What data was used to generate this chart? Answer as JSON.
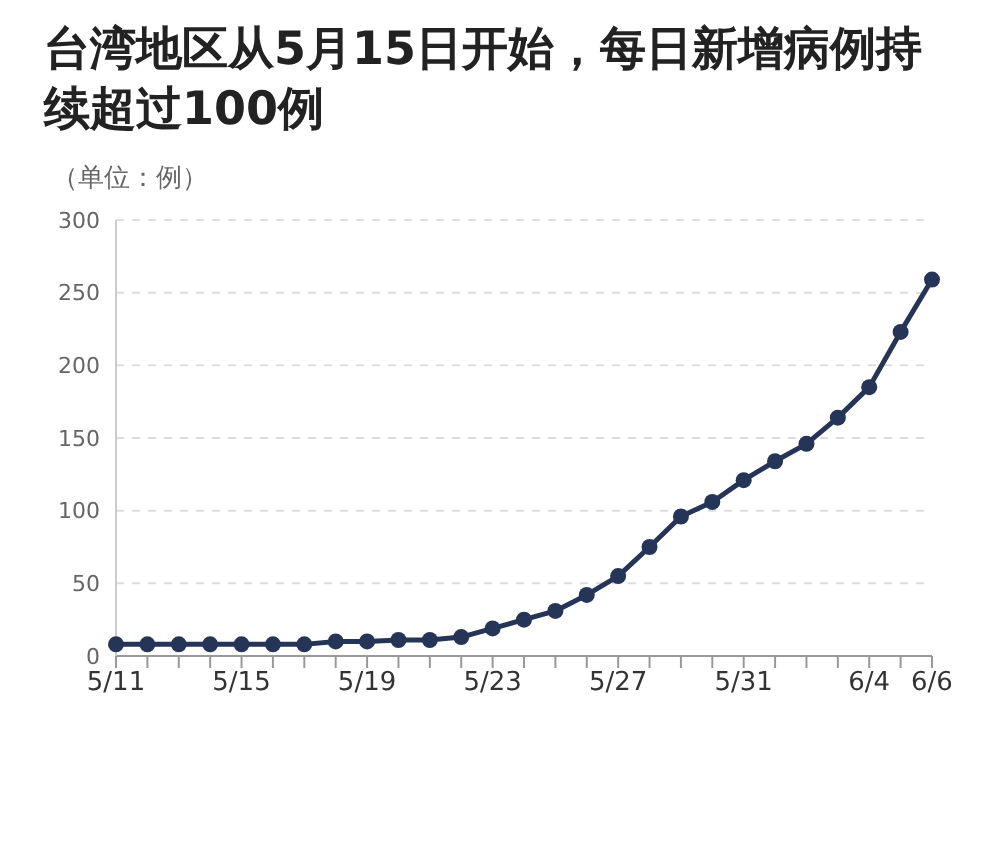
{
  "chart_data": {
    "type": "line",
    "title": "台湾地区从5月15日开始，每日新增病例持续超过100例",
    "ylabel": "（单位：例）",
    "categories": [
      "5/11",
      null,
      null,
      null,
      "5/15",
      null,
      null,
      null,
      "5/19",
      null,
      null,
      null,
      "5/23",
      null,
      null,
      null,
      "5/27",
      null,
      null,
      null,
      "5/31",
      null,
      null,
      null,
      "6/4",
      null,
      "6/6"
    ],
    "series": [
      {
        "color": "#253557",
        "values": [
          8,
          8,
          8,
          8,
          8,
          8,
          8,
          10,
          10,
          11,
          11,
          13,
          19,
          25,
          31,
          42,
          55,
          75,
          96,
          106,
          121,
          134,
          146,
          164,
          185,
          223,
          259
        ]
      }
    ],
    "ylim": [
      0,
      300
    ],
    "yticks": [
      0,
      50,
      100,
      150,
      200,
      250,
      300
    ],
    "grid": "y",
    "marker": "circle",
    "line_style": "solid",
    "legend": false
  }
}
